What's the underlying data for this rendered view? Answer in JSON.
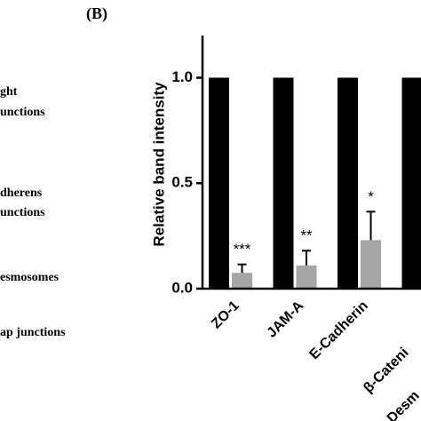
{
  "panel_label": "(B)",
  "side_labels": [
    "ght",
    "unctions",
    "dherens",
    "unctions",
    "esmosomes",
    "ap junctions"
  ],
  "chart_data": {
    "type": "bar",
    "y_label": "Relative band intensity",
    "categories": [
      "ZO-1",
      "JAM-A",
      "E-Cadherin",
      "β-Cateni",
      "Desm"
    ],
    "series": [
      {
        "color": "#000000",
        "values": [
          1.0,
          1.0,
          1.0,
          1.0,
          null
        ]
      },
      {
        "color": "#a6a6a6",
        "values": [
          0.075,
          0.11,
          0.23,
          null,
          null
        ],
        "errors": [
          0.04,
          0.07,
          0.135,
          null,
          null
        ]
      }
    ],
    "annotations": [
      "***",
      "**",
      "*",
      null,
      null
    ],
    "ylim": [
      0,
      1.2
    ],
    "yticks": [
      {
        "value": 0,
        "label": "0.0"
      },
      {
        "value": 0.5,
        "label": "0.5"
      },
      {
        "value": 1,
        "label": "1.0"
      }
    ]
  }
}
